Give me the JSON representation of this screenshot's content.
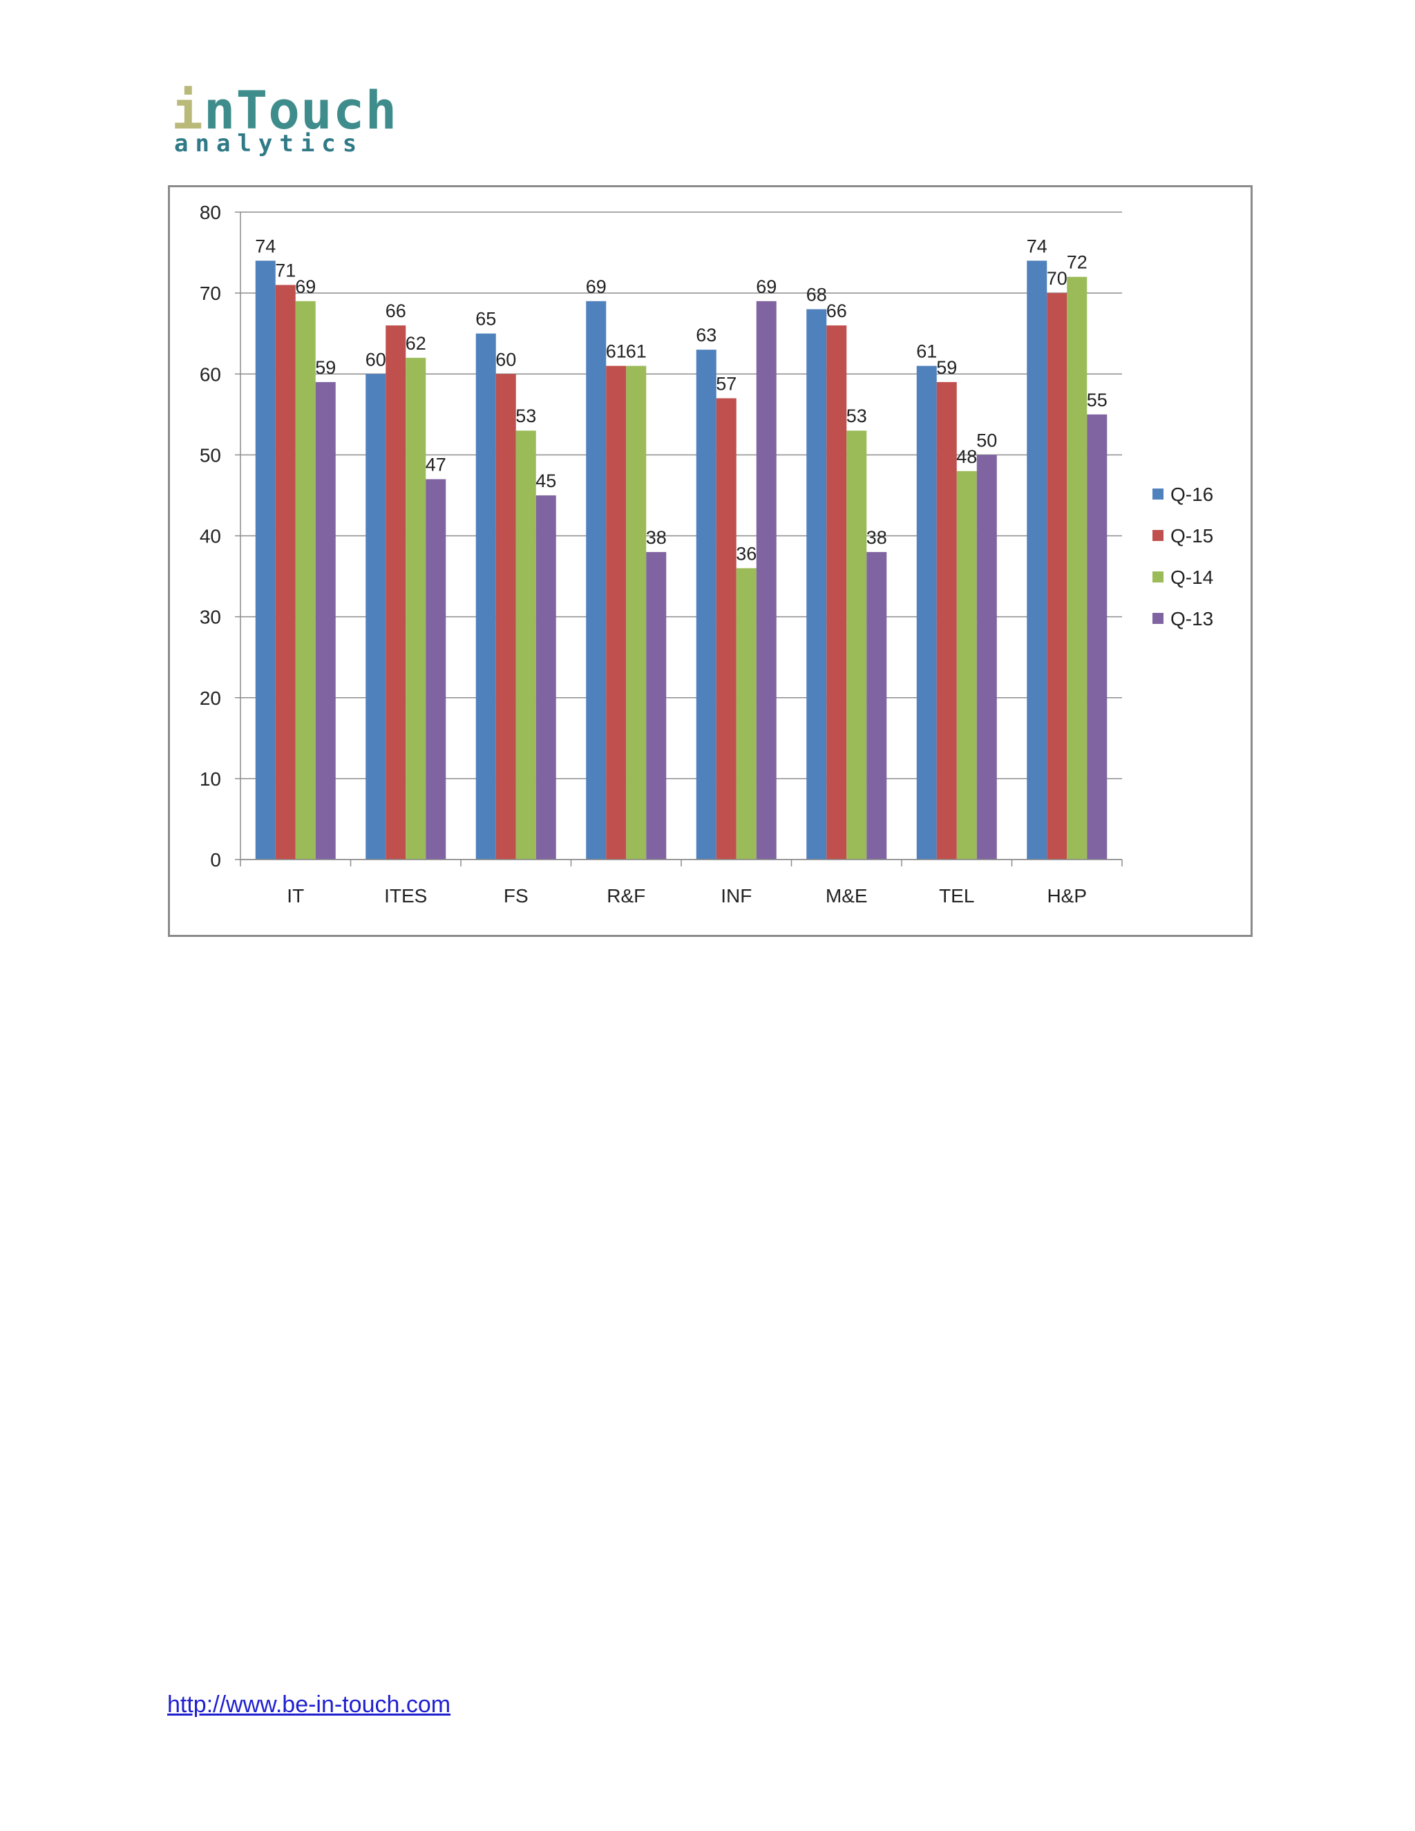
{
  "logo": {
    "lead": "i",
    "main": "nTouch",
    "sub": "analytics"
  },
  "chart_data": {
    "type": "bar",
    "categories": [
      "IT",
      "ITES",
      "FS",
      "R&F",
      "INF",
      "M&E",
      "TEL",
      "H&P"
    ],
    "series": [
      {
        "name": "Q-16",
        "color": "#4f81bd",
        "values": [
          74,
          60,
          65,
          69,
          63,
          68,
          61,
          74
        ]
      },
      {
        "name": "Q-15",
        "color": "#c0504d",
        "values": [
          71,
          66,
          60,
          61,
          57,
          66,
          59,
          70
        ]
      },
      {
        "name": "Q-14",
        "color": "#9bbb59",
        "values": [
          69,
          62,
          53,
          61,
          36,
          53,
          48,
          72
        ]
      },
      {
        "name": "Q-13",
        "color": "#8064a2",
        "values": [
          59,
          47,
          45,
          38,
          69,
          38,
          50,
          55
        ]
      }
    ],
    "ylim": [
      0,
      80
    ],
    "yticks": [
      0,
      10,
      20,
      30,
      40,
      50,
      60,
      70,
      80
    ],
    "grid": true,
    "legend": "right",
    "data_labels": true
  },
  "footer": {
    "link_text": "http://www.be-in-touch.com"
  }
}
